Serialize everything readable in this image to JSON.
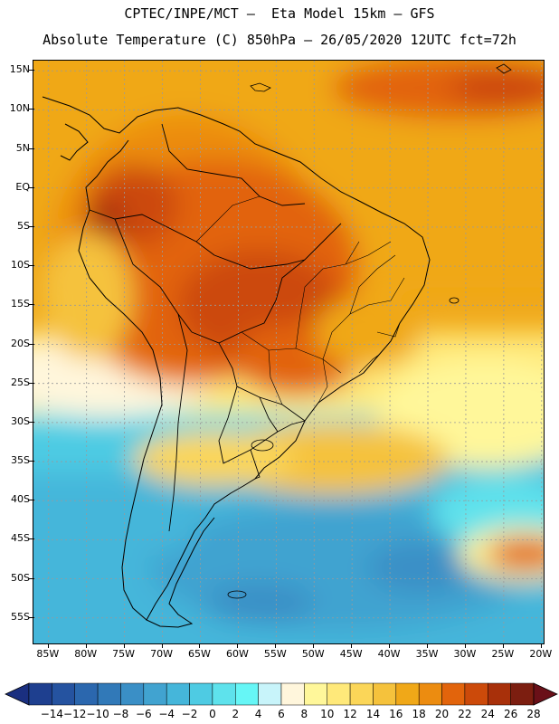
{
  "title_line1": "CPTEC/INPE/MCT –  Eta Model 15km – GFS",
  "title_line2": "Absolute Temperature (C) 850hPa – 26/05/2020 12UTC fct=72h",
  "lat_labels": [
    "15N",
    "10N",
    "5N",
    "EQ",
    "5S",
    "10S",
    "15S",
    "20S",
    "25S",
    "30S",
    "35S",
    "40S",
    "45S",
    "50S",
    "55S"
  ],
  "lat_values": [
    15,
    10,
    5,
    0,
    -5,
    -10,
    -15,
    -20,
    -25,
    -30,
    -35,
    -40,
    -45,
    -50,
    -55
  ],
  "lon_labels": [
    "85W",
    "80W",
    "75W",
    "70W",
    "65W",
    "60W",
    "55W",
    "50W",
    "45W",
    "40W",
    "35W",
    "30W",
    "25W",
    "20W"
  ],
  "lon_values": [
    -85,
    -80,
    -75,
    -70,
    -65,
    -60,
    -55,
    -50,
    -45,
    -40,
    -35,
    -30,
    -25,
    -20
  ],
  "colorbar": {
    "labels": [
      "−14",
      "−12",
      "−10",
      "−8",
      "−6",
      "−4",
      "−2",
      "0",
      "2",
      "4",
      "6",
      "8",
      "10",
      "12",
      "14",
      "16",
      "18",
      "20",
      "22",
      "24",
      "26",
      "28"
    ],
    "colors": [
      "#1e3f8f",
      "#2553a0",
      "#2b67ae",
      "#3179b8",
      "#3a8fc6",
      "#41a3d0",
      "#45b6da",
      "#4ecbe3",
      "#5ee2ec",
      "#66f6f6",
      "#c8f4fa",
      "#fff6dc",
      "#fff79a",
      "#ffe97a",
      "#fbd658",
      "#f5c23c",
      "#f0a818",
      "#ec8c10",
      "#e2640c",
      "#cc4a0a",
      "#a8300a",
      "#7c1e10"
    ],
    "low_color": "#1a2f80",
    "high_color": "#6a1018"
  },
  "colors": {
    "grid": "#9a9a9a",
    "coast": "#000000"
  }
}
